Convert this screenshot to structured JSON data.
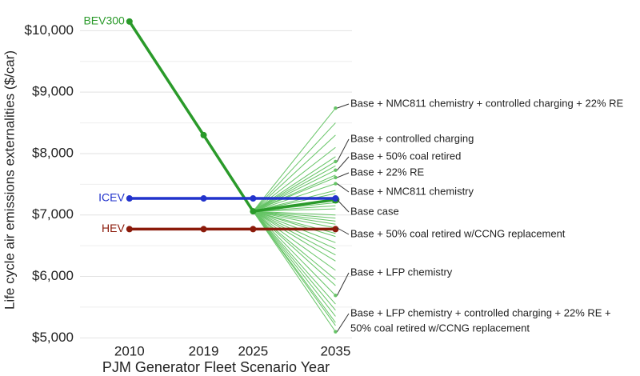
{
  "chart_data": {
    "type": "line",
    "x_label": "PJM Generator Fleet Scenario Year",
    "y_label": "Life cycle air emissions externalities ($/car)",
    "x": [
      2010,
      2019,
      2025,
      2035
    ],
    "xlim": [
      2004,
      2037
    ],
    "xticks": [
      2010,
      2019,
      2025,
      2035
    ],
    "ylim": [
      4900,
      10500
    ],
    "yticks": [
      {
        "value": 5000,
        "label": "$5,000"
      },
      {
        "value": 6000,
        "label": "$6,000"
      },
      {
        "value": 7000,
        "label": "$7,000"
      },
      {
        "value": 8000,
        "label": "$8,000"
      },
      {
        "value": 9000,
        "label": "$9,000"
      },
      {
        "value": 10000,
        "label": "$10,000"
      }
    ],
    "minor_yticks": [
      5500,
      6500,
      7500,
      8500,
      9500
    ],
    "grid": true,
    "series": [
      {
        "name": "BEV300",
        "color": "#2a9a2a",
        "values": [
          10150,
          8300,
          7060,
          7250
        ]
      },
      {
        "name": "ICEV",
        "color": "#2233cc",
        "values": [
          7270,
          7270,
          7270,
          7270
        ]
      },
      {
        "name": "HEV",
        "color": "#8b1a0a",
        "values": [
          6770,
          6770,
          6770,
          6770
        ]
      }
    ],
    "scenario_color": "#66c466",
    "scenario_values": [
      8500,
      8300,
      8100,
      7950,
      7800,
      7650,
      7400,
      7350,
      7200,
      7150,
      7100,
      7000,
      6950,
      6900,
      6850,
      6700,
      6650,
      6550,
      6450,
      6350,
      6250,
      6100,
      5950,
      5850,
      5550,
      5450,
      5350,
      5250,
      5200
    ],
    "annotations": [
      {
        "text": [
          "Base + NMC811 chemistry + controlled charging + 22% RE"
        ],
        "value": 8740
      },
      {
        "text": [
          "Base + controlled charging"
        ],
        "value": 7870
      },
      {
        "text": [
          "Base + 50% coal retired"
        ],
        "value": 7730
      },
      {
        "text": [
          "Base + 22% RE"
        ],
        "value": 7610
      },
      {
        "text": [
          "Base + NMC811 chemistry"
        ],
        "value": 7510
      },
      {
        "text": [
          "Base case"
        ],
        "value": 7250
      },
      {
        "text": [
          "Base + 50% coal retired w/CCNG replacement"
        ],
        "value": 6790
      },
      {
        "text": [
          "Base + LFP chemistry"
        ],
        "value": 5690
      },
      {
        "text": [
          "Base + LFP chemistry + controlled charging + 22% RE +",
          "50% coal retired w/CCNG replacement"
        ],
        "value": 5100
      }
    ]
  }
}
